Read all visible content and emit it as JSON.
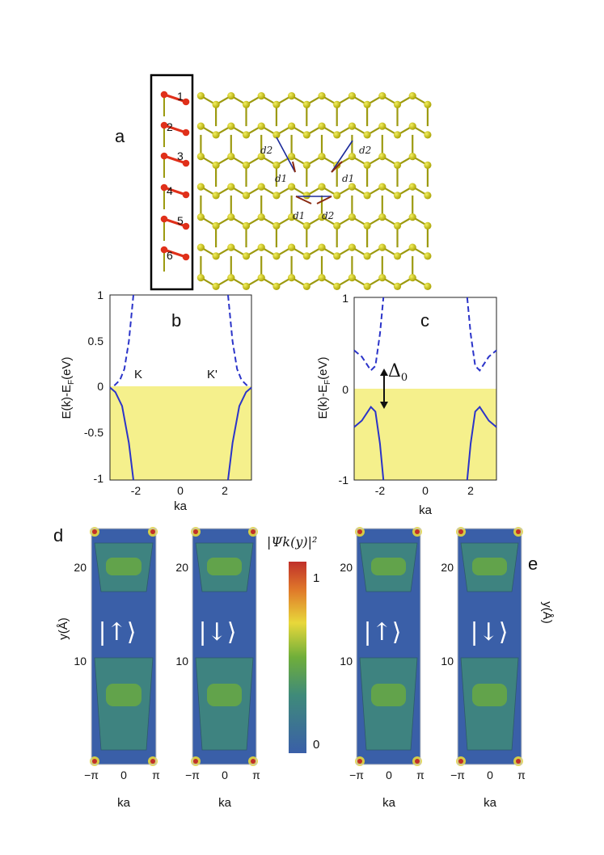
{
  "panels": {
    "a": {
      "label": "a",
      "site_numbers": [
        "1",
        "2",
        "3",
        "4",
        "5",
        "6"
      ],
      "vector_labels": [
        "d2",
        "d1",
        "d2",
        "d1",
        "d1",
        "d2"
      ]
    },
    "b": {
      "label": "b",
      "ylabel": "E(k)-E",
      "ylabel_sub": "F",
      "ylabel_unit": "(eV)",
      "xlabel": "ka",
      "point_labels": [
        "K",
        "K'"
      ]
    },
    "c": {
      "label": "c",
      "ylabel": "E(k)-E",
      "ylabel_sub": "F",
      "ylabel_unit": "(eV)",
      "xlabel": "ka",
      "gap_label": "Δ",
      "gap_sub": "0"
    },
    "d": {
      "label": "d",
      "ylabel": "y(Å)",
      "xlabel": "ka",
      "maps": [
        {
          "ket": "|↑⟩"
        },
        {
          "ket": "|↓⟩"
        }
      ]
    },
    "e": {
      "label": "e",
      "ylabel": "y(Å)",
      "xlabel": "ka",
      "maps": [
        {
          "ket": "|↑⟩"
        },
        {
          "ket": "|↓⟩"
        }
      ]
    },
    "colorbar": {
      "title": "|Ψk(y)|²",
      "max_label": "1",
      "min_label": "0"
    }
  },
  "chart_data": [
    {
      "type": "line",
      "panel": "b",
      "xlim": [
        -3.14,
        3.14
      ],
      "ylim": [
        -1,
        1
      ],
      "xticks": [
        "-2",
        "0",
        "2"
      ],
      "yticks": [
        "1",
        "0.5",
        "0",
        "-0.5",
        "-1"
      ],
      "shaded_region": "E < 0 (yellow)",
      "series": [
        {
          "style": "dashed",
          "x": [
            -2.95,
            -2.7,
            -2.5,
            -2.3,
            -2.1
          ],
          "y": [
            0.02,
            0.08,
            0.2,
            0.5,
            1.0
          ]
        },
        {
          "style": "dashed",
          "x": [
            2.1,
            2.3,
            2.5,
            2.7,
            2.95
          ],
          "y": [
            1.0,
            0.5,
            0.2,
            0.08,
            0.02
          ]
        },
        {
          "style": "solid",
          "x": [
            -3.14,
            -2.9,
            -2.6,
            -2.3,
            -2.1
          ],
          "y": [
            0,
            -0.05,
            -0.2,
            -0.6,
            -1.0
          ]
        },
        {
          "style": "solid",
          "x": [
            2.1,
            2.3,
            2.6,
            2.9,
            3.14
          ],
          "y": [
            -1.0,
            -0.6,
            -0.2,
            -0.05,
            0
          ]
        }
      ]
    },
    {
      "type": "line",
      "panel": "c",
      "xlim": [
        -3.14,
        3.14
      ],
      "ylim": [
        -1,
        1
      ],
      "xticks": [
        "-2",
        "0",
        "2"
      ],
      "yticks": [
        "1",
        "0",
        "-1"
      ],
      "shaded_region": "E < 0 (yellow)",
      "series": [
        {
          "style": "dashed",
          "x": [
            -3.14,
            -2.8,
            -2.4,
            -2.2,
            -2.0,
            -1.85
          ],
          "y": [
            0.42,
            0.35,
            0.2,
            0.25,
            0.6,
            1.0
          ]
        },
        {
          "style": "dashed",
          "x": [
            1.85,
            2.0,
            2.2,
            2.4,
            2.8,
            3.14
          ],
          "y": [
            1.0,
            0.6,
            0.25,
            0.2,
            0.35,
            0.42
          ]
        },
        {
          "style": "solid",
          "x": [
            -3.14,
            -2.8,
            -2.4,
            -2.2,
            -2.0,
            -1.85
          ],
          "y": [
            -0.42,
            -0.35,
            -0.2,
            -0.25,
            -0.6,
            -1.0
          ]
        },
        {
          "style": "solid",
          "x": [
            1.85,
            2.0,
            2.2,
            2.4,
            2.8,
            3.14
          ],
          "y": [
            -1.0,
            -0.6,
            -0.25,
            -0.2,
            -0.35,
            -0.42
          ]
        }
      ]
    },
    {
      "type": "heatmap",
      "panel": "d,e",
      "xticks": [
        "−π",
        "0",
        "π"
      ],
      "yticks": [
        "20",
        "10"
      ],
      "colormap": [
        "#3a5fa8",
        "#3f8a7a",
        "#6fae3a",
        "#e8d83a",
        "#e07a2a",
        "#c0302a"
      ],
      "colorbar_range": [
        0,
        1
      ]
    }
  ]
}
